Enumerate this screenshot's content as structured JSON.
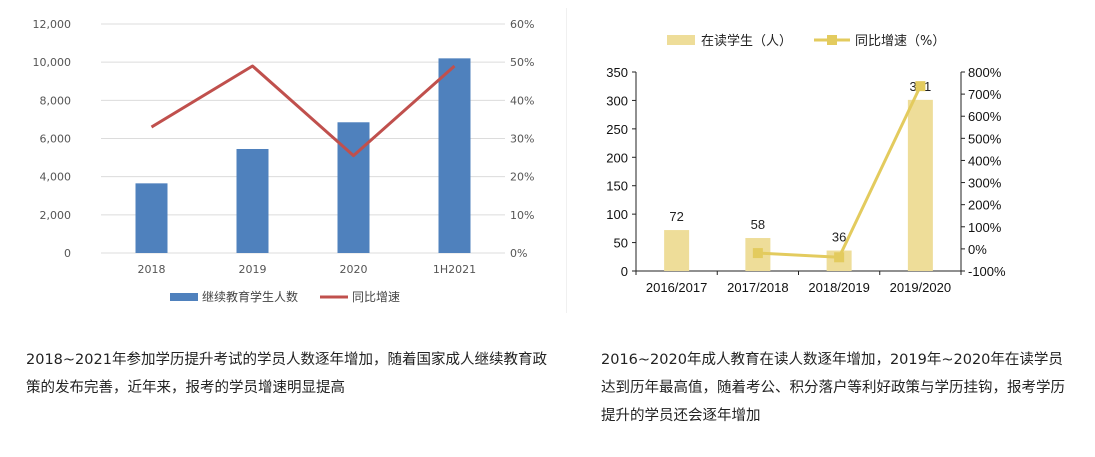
{
  "chart_data": [
    {
      "type": "bar",
      "categories": [
        "2018",
        "2019",
        "2020",
        "1H2021"
      ],
      "series": [
        {
          "name": "继续教育学生人数",
          "values": [
            3650,
            5450,
            6850,
            10200
          ],
          "axis": "left",
          "color": "#4f81bd"
        },
        {
          "name": "同比增速",
          "type": "line",
          "values": [
            33,
            49,
            25.5,
            49
          ],
          "axis": "right",
          "color": "#c0504d"
        }
      ],
      "ylim": [
        0,
        12000
      ],
      "y_ticks": [
        "0",
        "2,000",
        "4,000",
        "6,000",
        "8,000",
        "10,000",
        "12,000"
      ],
      "y2lim": [
        0,
        60
      ],
      "y2_ticks": [
        "0%",
        "10%",
        "20%",
        "30%",
        "40%",
        "50%",
        "60%"
      ],
      "legend": "bottom",
      "grid": true
    },
    {
      "type": "bar",
      "categories": [
        "2016/2017",
        "2017/2018",
        "2018/2019",
        "2019/2020"
      ],
      "series": [
        {
          "name": "在读学生（人）",
          "values": [
            72,
            58,
            36,
            301
          ],
          "axis": "left",
          "color": "#eedd99"
        },
        {
          "name": "同比增速（%）",
          "type": "line",
          "values": [
            null,
            -19,
            -38,
            736
          ],
          "axis": "right",
          "color": "#e3cb5e"
        }
      ],
      "data_labels": [
        "72",
        "58",
        "36",
        "301"
      ],
      "ylim": [
        0,
        350
      ],
      "y_ticks": [
        "0",
        "50",
        "100",
        "150",
        "200",
        "250",
        "300",
        "350"
      ],
      "y2lim": [
        -100,
        800
      ],
      "y2_ticks": [
        "-100%",
        "0%",
        "100%",
        "200%",
        "300%",
        "400%",
        "500%",
        "600%",
        "700%",
        "800%"
      ],
      "legend": "top",
      "grid": false
    }
  ],
  "captions": {
    "left": "2018~2021年参加学历提升考试的学员人数逐年增加，随着国家成人继续教育政策的发布完善，近年来，报考的学员增速明显提高",
    "right": "2016~2020年成人教育在读人数逐年增加，2019年~2020年在读学员达到历年最高值，随着考公、积分落户等利好政策与学历挂钩，报考学历提升的学员还会逐年增加"
  }
}
